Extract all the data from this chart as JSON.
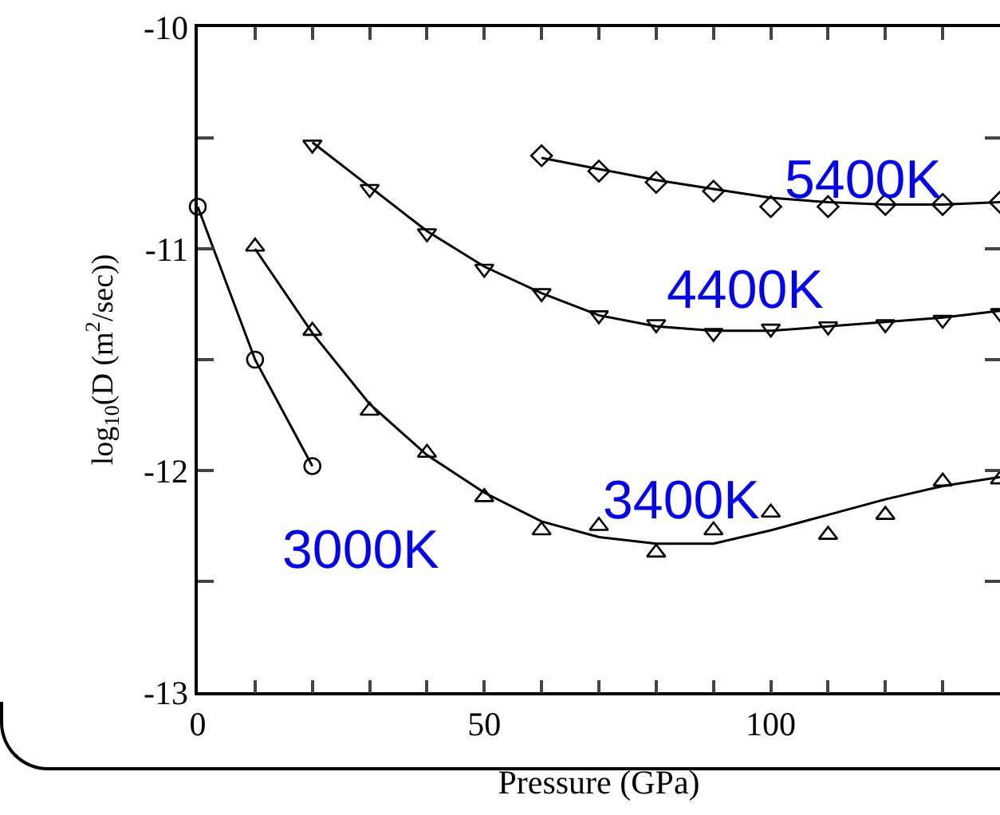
{
  "chart_data": {
    "type": "scatter",
    "xlabel": "Pressure (GPa)",
    "ylabel": "log$_{10}$(D (m$^{2}$/sec))",
    "xlim": [
      0,
      140
    ],
    "ylim": [
      -13,
      -10
    ],
    "xticks": [
      0,
      {
        "value": 10,
        "label": null
      },
      {
        "value": 20,
        "label": null
      },
      {
        "value": 30,
        "label": null
      },
      {
        "value": 40,
        "label": null
      },
      50,
      {
        "value": 60,
        "label": null
      },
      {
        "value": 70,
        "label": null
      },
      {
        "value": 80,
        "label": null
      },
      {
        "value": 90,
        "label": null
      },
      100,
      {
        "value": 110,
        "label": null
      },
      {
        "value": 120,
        "label": null
      },
      {
        "value": 130,
        "label": null
      }
    ],
    "yticks": [
      -13,
      {
        "value": -12.5,
        "label": null
      },
      -12,
      {
        "value": -11.5,
        "label": null
      },
      -11,
      {
        "value": -10.5,
        "label": null
      },
      -10
    ],
    "grid": false,
    "legend": false,
    "series": [
      {
        "type": "line",
        "name": "3000K",
        "marker": "circle",
        "color": "#000000",
        "x": [
          0,
          10,
          20
        ],
        "values": [
          -10.81,
          -11.5,
          -11.98
        ]
      },
      {
        "type": "scatter",
        "name": "3400K",
        "marker": "triangle",
        "color": "#000000",
        "x": [
          10,
          20,
          30,
          40,
          50,
          60,
          70,
          80,
          90,
          100,
          110,
          120,
          130,
          140
        ],
        "values": [
          -10.99,
          -11.37,
          -11.73,
          -11.92,
          -12.12,
          -12.27,
          -12.25,
          -12.37,
          -12.27,
          -12.19,
          -12.29,
          -12.2,
          -12.05,
          -12.04
        ]
      },
      {
        "type": "line",
        "marker": "none",
        "color": "#000000",
        "x": [
          10,
          20,
          30,
          40,
          50,
          60,
          70,
          80,
          90,
          100,
          110,
          120,
          130,
          140
        ],
        "values": [
          -11.0,
          -11.38,
          -11.7,
          -11.93,
          -12.1,
          -12.23,
          -12.3,
          -12.33,
          -12.33,
          -12.27,
          -12.2,
          -12.13,
          -12.07,
          -12.03
        ]
      },
      {
        "type": "scatter",
        "name": "4400K",
        "marker": "triangle-down",
        "color": "#000000",
        "x": [
          20,
          30,
          40,
          50,
          60,
          70,
          80,
          90,
          100,
          110,
          120,
          130,
          140
        ],
        "values": [
          -10.53,
          -10.73,
          -10.93,
          -11.09,
          -11.2,
          -11.3,
          -11.34,
          -11.38,
          -11.36,
          -11.35,
          -11.34,
          -11.32,
          -11.29
        ]
      },
      {
        "type": "line",
        "marker": "none",
        "color": "#000000",
        "x": [
          20,
          30,
          40,
          50,
          60,
          70,
          80,
          90,
          100,
          110,
          120,
          130,
          140
        ],
        "values": [
          -10.52,
          -10.72,
          -10.92,
          -11.08,
          -11.2,
          -11.3,
          -11.35,
          -11.37,
          -11.37,
          -11.35,
          -11.33,
          -11.31,
          -11.28
        ]
      },
      {
        "type": "scatter",
        "name": "5400K",
        "marker": "diamond",
        "color": "#000000",
        "x": [
          60,
          70,
          80,
          90,
          100,
          110,
          120,
          130,
          140
        ],
        "values": [
          -10.58,
          -10.65,
          -10.7,
          -10.74,
          -10.81,
          -10.81,
          -10.8,
          -10.8,
          -10.79
        ]
      },
      {
        "type": "line",
        "marker": "none",
        "color": "#000000",
        "x": [
          60,
          70,
          80,
          90,
          100,
          110,
          120,
          130,
          140
        ],
        "values": [
          -10.59,
          -10.64,
          -10.69,
          -10.73,
          -10.77,
          -10.79,
          -10.8,
          -10.8,
          -10.79
        ]
      }
    ]
  }
}
